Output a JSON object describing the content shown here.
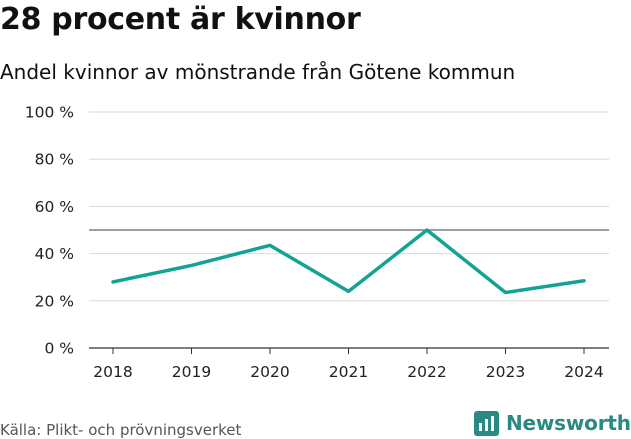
{
  "colors": {
    "series": "#13a395",
    "reference": "#666666",
    "grid": "#d9d9d9",
    "brand": "#2a8a83"
  },
  "chart_data": {
    "type": "line",
    "title": "28 procent är kvinnor",
    "subtitle": "Andel kvinnor av mönstrande från Götene kommun",
    "x": [
      "2018",
      "2019",
      "2020",
      "2021",
      "2022",
      "2023",
      "2024"
    ],
    "series": [
      {
        "name": "Andel kvinnor",
        "values": [
          28,
          35,
          43.5,
          24,
          50,
          23.5,
          28.5
        ]
      }
    ],
    "reference_line": 50,
    "ylim": [
      0,
      100
    ],
    "yticks": [
      0,
      20,
      40,
      60,
      80,
      100
    ],
    "ytick_labels": [
      "0 %",
      "20 %",
      "40 %",
      "60 %",
      "80 %",
      "100 %"
    ],
    "grid": true,
    "xlabel": "",
    "ylabel": ""
  },
  "footer": {
    "source": "Källa: Plikt- och prövningsverket",
    "brand": "Newsworthy",
    "brand_icon": "bar-chart-icon"
  }
}
